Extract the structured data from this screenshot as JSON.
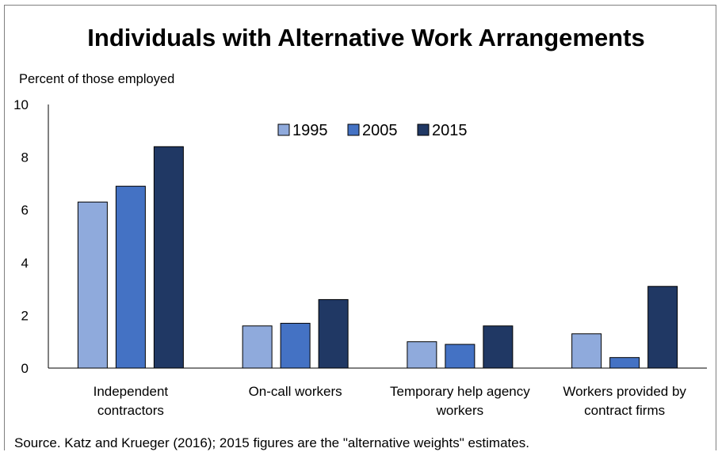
{
  "chart_data": {
    "type": "bar",
    "title": "Individuals with Alternative Work Arrangements",
    "ylabel": "Percent of those employed",
    "xlabel": "",
    "ylim": [
      0,
      10
    ],
    "yticks": [
      0,
      2,
      4,
      6,
      8,
      10
    ],
    "categories": [
      [
        "Independent",
        "contractors"
      ],
      [
        "On-call workers"
      ],
      [
        "Temporary help agency",
        "workers"
      ],
      [
        "Workers provided by",
        "contract firms"
      ]
    ],
    "series": [
      {
        "name": "1995",
        "color": "#8faadc",
        "values": [
          6.3,
          1.6,
          1.0,
          1.3
        ]
      },
      {
        "name": "2005",
        "color": "#4472c4",
        "values": [
          6.9,
          1.7,
          0.9,
          0.4
        ]
      },
      {
        "name": "2015",
        "color": "#203864",
        "values": [
          8.4,
          2.6,
          1.6,
          3.1
        ]
      }
    ],
    "legend_position": "top-center",
    "grid": false,
    "source": "Source. Katz and Krueger (2016); 2015 figures are the \"alternative weights\" estimates."
  }
}
